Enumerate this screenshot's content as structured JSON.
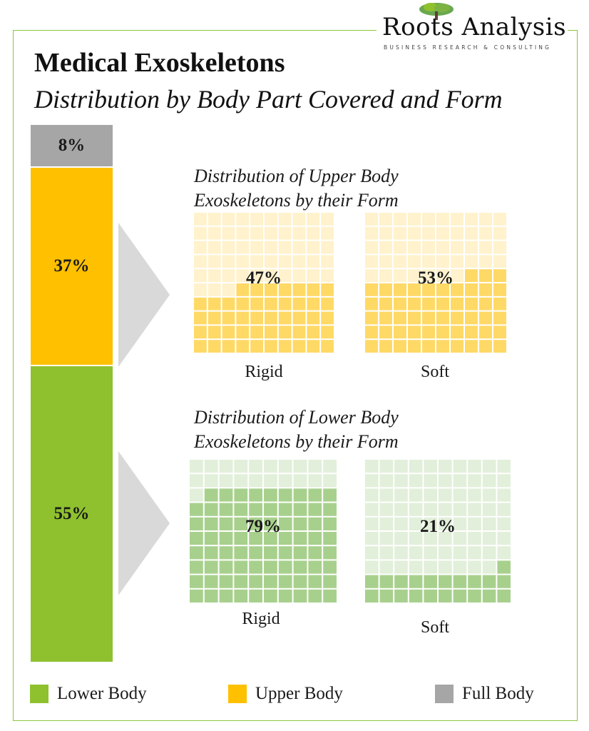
{
  "logo": {
    "name": "Roots Analysis",
    "tagline": "BUSINESS RESEARCH & CONSULTING"
  },
  "title": "Medical Exoskeletons",
  "subtitle": "Distribution by Body Part Covered and Form",
  "colors": {
    "lower_body": "#8fc12e",
    "lower_body_cell": "#a8d08d",
    "lower_body_cell_light": "#e2efda",
    "upper_body": "#ffc000",
    "upper_body_cell": "#ffd966",
    "upper_body_cell_light": "#fff2cc",
    "full_body": "#a6a6a6",
    "arrow": "#d9d9d9"
  },
  "chart_data": [
    {
      "type": "bar",
      "stacked": true,
      "segments": [
        {
          "name": "Full Body",
          "value": 8,
          "label": "8%"
        },
        {
          "name": "Upper Body",
          "value": 37,
          "label": "37%"
        },
        {
          "name": "Lower Body",
          "value": 55,
          "label": "55%"
        }
      ]
    },
    {
      "type": "waffle",
      "title_line1": "Distribution of Upper Body",
      "title_line2": "Exoskeletons by their Form",
      "series": [
        {
          "name": "Rigid",
          "value": 47,
          "label": "47%"
        },
        {
          "name": "Soft",
          "value": 53,
          "label": "53%"
        }
      ]
    },
    {
      "type": "waffle",
      "title_line1": "Distribution of Lower Body",
      "title_line2": "Exoskeletons by their Form",
      "series": [
        {
          "name": "Rigid",
          "value": 79,
          "label": "79%"
        },
        {
          "name": "Soft",
          "value": 21,
          "label": "21%"
        }
      ]
    }
  ],
  "legend": [
    {
      "label": "Lower Body",
      "color": "#8fc12e"
    },
    {
      "label": "Upper Body",
      "color": "#ffc000"
    },
    {
      "label": "Full Body",
      "color": "#a6a6a6"
    }
  ]
}
